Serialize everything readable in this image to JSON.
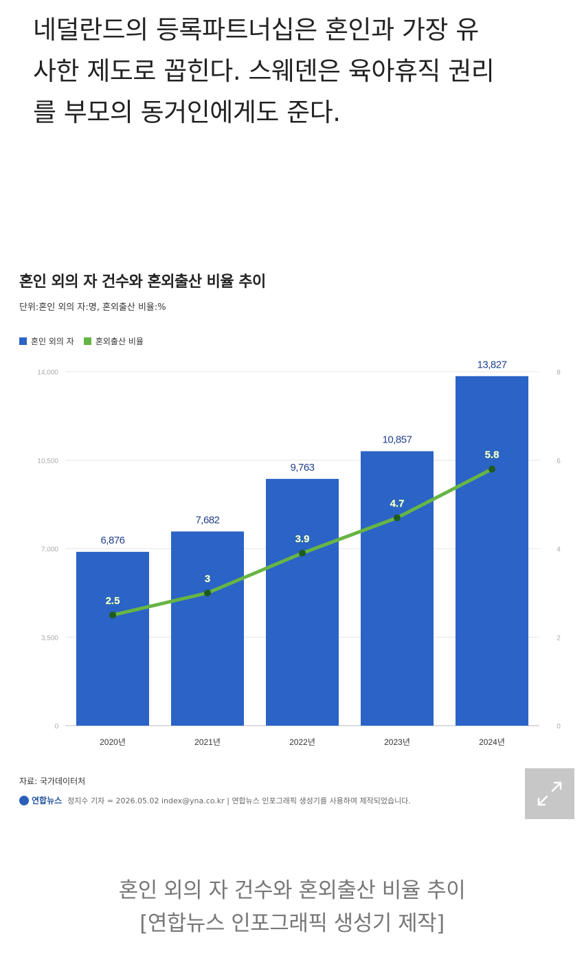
{
  "article": {
    "lines": [
      "네덜란드의 등록파트너십은 혼인과 가장 유",
      "사한 제도로 꼽힌다. 스웨덴은 육아휴직 권리",
      "를 부모의 동거인에게도 준다."
    ]
  },
  "chart_data": {
    "type": "bar",
    "title": "혼인 외의 자 건수와 혼외출산 비율 추이",
    "subtitle": "단위:혼인 외의 자:명, 혼외출산 비율:%",
    "categories": [
      "2020년",
      "2021년",
      "2022년",
      "2023년",
      "2024년"
    ],
    "series": [
      {
        "name": "혼인 외의 자",
        "type": "bar",
        "axis": "left",
        "values": [
          6876,
          7682,
          9763,
          10857,
          13827
        ],
        "labels": [
          "6,876",
          "7,682",
          "9,763",
          "10,857",
          "13,827"
        ],
        "color": "#2b63c6"
      },
      {
        "name": "혼외출산 비율",
        "type": "line",
        "axis": "right",
        "values": [
          2.5,
          3,
          3.9,
          4.7,
          5.8
        ],
        "labels": [
          "2.5",
          "3",
          "3.9",
          "4.7",
          "5.8"
        ],
        "color": "#67b545"
      }
    ],
    "y_left": {
      "range": [
        0,
        14000
      ],
      "ticks": [
        "0",
        "3,500",
        "7,000",
        "10,500",
        "14,000"
      ]
    },
    "y_right": {
      "range": [
        0,
        8
      ],
      "ticks": [
        "0",
        "2",
        "4",
        "6",
        "8"
      ]
    },
    "legend_position": "top-left",
    "grid": true
  },
  "source": "자료: 국가데이터처",
  "credit": {
    "brand": "연합뉴스",
    "text": "정지수 기자 = 2026.05.02 index@yna.co.kr | 연합뉴스 인포그래픽 생성기를 사용하여 제작되었습니다."
  },
  "caption": {
    "line1": "혼인 외의 자 건수와 혼외출산 비율 추이",
    "line2": "[연합뉴스 인포그래픽 생성기 제작]"
  },
  "expand_icon": "expand-icon"
}
